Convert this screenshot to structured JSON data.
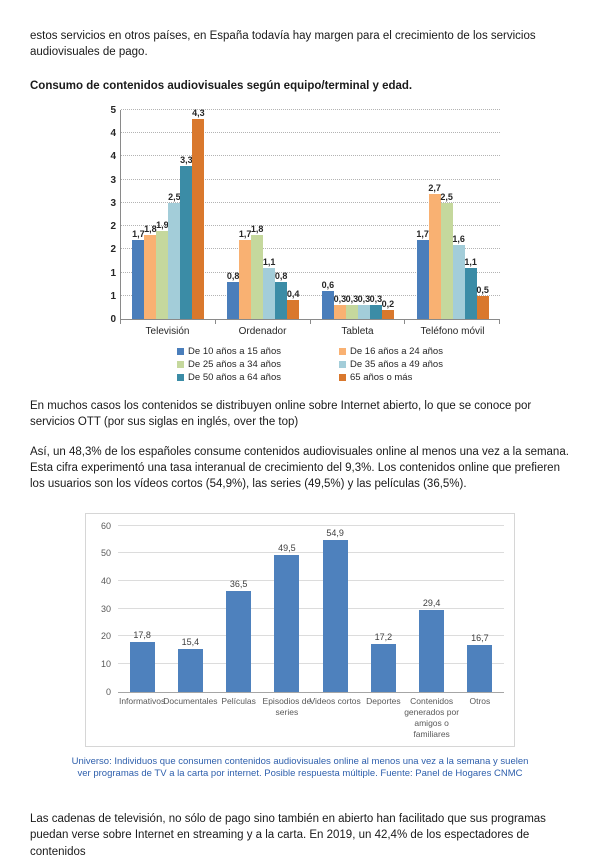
{
  "page": {
    "intro_paragraph": "estos servicios en otros países, en España todavía hay margen para el crecimiento de los servicios audiovisuales de pago.",
    "heading": "Consumo de contenidos audiovisuales según equipo/terminal y edad.",
    "paragraph_ott": "En muchos casos los contenidos se distribuyen online sobre Internet abierto, lo que se conoce por servicios OTT (por sus siglas en inglés, over the top)",
    "paragraph_stats": "Así, un 48,3% de los españoles consume contenidos audiovisuales online al menos una vez a la semana. Esta cifra experimentó una tasa interanual de crecimiento del 9,3%. Los contenidos online que prefieren los usuarios son los vídeos cortos (54,9%), las series (49,5%) y las películas (36,5%).",
    "chart2_caption": "Universo: Individuos que consumen contenidos audiovisuales online al menos una vez a la semana y suelen ver programas de TV a la carta por internet. Posible respuesta múltiple. Fuente: Panel de Hogares CNMC",
    "closing_paragraph": "Las cadenas de televisión, no sólo de pago sino también en abierto han facilitado que sus programas puedan verse sobre Internet en streaming y a la carta. En 2019, un 42,4% de los espectadores de contenidos"
  },
  "chart_data": [
    {
      "type": "bar",
      "title": "Consumo de contenidos audiovisuales según equipo/terminal y edad",
      "categories": [
        "Televisión",
        "Ordenador",
        "Tableta",
        "Teléfono móvil"
      ],
      "series": [
        {
          "name": "De 10 años a 15 años",
          "color": "#4a7ebb",
          "values": [
            1.7,
            0.8,
            0.6,
            1.7
          ]
        },
        {
          "name": "De 16 años a 24 años",
          "color": "#f9b172",
          "values": [
            1.8,
            1.7,
            0.3,
            2.7
          ]
        },
        {
          "name": "De 25 años a 34 años",
          "color": "#c5d89d",
          "values": [
            1.9,
            1.8,
            0.3,
            2.5
          ]
        },
        {
          "name": "De 35 años a 49 años",
          "color": "#a3cdd9",
          "values": [
            2.5,
            1.1,
            0.3,
            1.6
          ]
        },
        {
          "name": "De 50 años a 64 años",
          "color": "#3b8ca6",
          "values": [
            3.3,
            0.8,
            0.3,
            1.1
          ]
        },
        {
          "name": "65 años o más",
          "color": "#d9782d",
          "values": [
            4.3,
            0.4,
            0.2,
            0.5
          ]
        }
      ],
      "ylim": [
        0,
        4.5
      ],
      "grid_step": 0.5,
      "y_tick_labels": [
        "0",
        "1",
        "1",
        "2",
        "2",
        "3",
        "3",
        "4",
        "4",
        "5"
      ],
      "legend_position": "bottom",
      "legend_column_order": [
        0,
        2,
        4,
        1,
        3,
        5
      ],
      "grid": true,
      "xlabel": "",
      "ylabel": ""
    },
    {
      "type": "bar",
      "title": "",
      "categories": [
        "Informativos",
        "Documentales",
        "Películas",
        "Episodios de series",
        "Videos cortos",
        "Deportes",
        "Contenidos generados por amigos o familiares",
        "Otros"
      ],
      "values": [
        17.8,
        15.4,
        36.5,
        49.5,
        54.9,
        17.2,
        29.4,
        16.7
      ],
      "bar_color": "#4e81bd",
      "ylim": [
        0,
        60
      ],
      "grid_step": 10,
      "grid": true,
      "xlabel": "",
      "ylabel": ""
    }
  ]
}
